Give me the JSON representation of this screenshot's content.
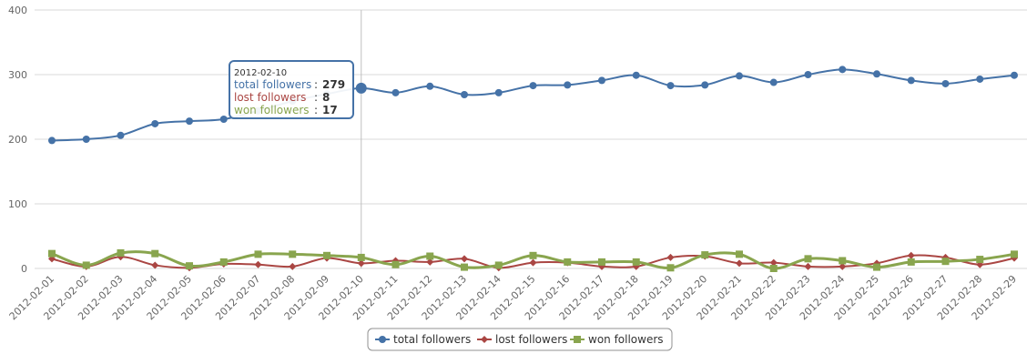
{
  "chart_data": {
    "type": "line",
    "title": "",
    "xlabel": "",
    "ylabel": "",
    "ylim": [
      0,
      400
    ],
    "yticks": [
      0,
      100,
      200,
      300,
      400
    ],
    "grid": true,
    "legend_position": "bottom-center",
    "categories": [
      "2012-02-01",
      "2012-02-02",
      "2012-02-03",
      "2012-02-04",
      "2012-02-05",
      "2012-02-06",
      "2012-02-07",
      "2012-02-08",
      "2012-02-09",
      "2012-02-10",
      "2012-02-11",
      "2012-02-12",
      "2012-02-13",
      "2012-02-14",
      "2012-02-15",
      "2012-02-16",
      "2012-02-17",
      "2012-02-18",
      "2012-02-19",
      "2012-02-20",
      "2012-02-21",
      "2012-02-22",
      "2012-02-23",
      "2012-02-24",
      "2012-02-25",
      "2012-02-26",
      "2012-02-27",
      "2012-02-28",
      "2012-02-29"
    ],
    "series": [
      {
        "name": "total followers",
        "color": "#4572A7",
        "marker": "circle",
        "values": [
          198,
          200,
          206,
          224,
          228,
          231,
          244,
          259,
          270,
          279,
          272,
          282,
          269,
          272,
          283,
          284,
          291,
          299,
          283,
          284,
          298,
          288,
          300,
          308,
          301,
          291,
          286,
          293,
          299
        ]
      },
      {
        "name": "lost followers",
        "color": "#AA4643",
        "marker": "diamond",
        "values": [
          15,
          3,
          18,
          5,
          1,
          7,
          6,
          3,
          16,
          8,
          12,
          10,
          15,
          1,
          9,
          9,
          3,
          3,
          17,
          19,
          8,
          9,
          3,
          3,
          8,
          20,
          17,
          6,
          16
        ]
      },
      {
        "name": "won followers",
        "color": "#89A54E",
        "marker": "square",
        "values": [
          23,
          5,
          24,
          23,
          4,
          10,
          22,
          22,
          20,
          17,
          6,
          19,
          2,
          5,
          20,
          10,
          10,
          10,
          1,
          21,
          22,
          0,
          15,
          12,
          2,
          10,
          11,
          14,
          22
        ]
      }
    ],
    "tooltip": {
      "date": "2012-02-10",
      "index": 9,
      "rows": [
        {
          "label": "total followers",
          "value": "279",
          "color": "#4572A7"
        },
        {
          "label": "lost followers",
          "value": "8",
          "color": "#AA4643"
        },
        {
          "label": "won followers",
          "value": "17",
          "color": "#89A54E"
        }
      ]
    }
  }
}
